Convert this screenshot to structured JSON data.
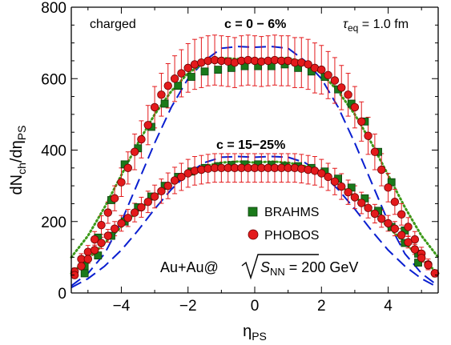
{
  "chart_data": {
    "type": "scatter",
    "xlabel": "η",
    "xlabel_sub": "PS",
    "ylabel": "dN",
    "ylabel_sub1": "ch",
    "ylabel_mid": "/dη",
    "ylabel_sub2": "PS",
    "xlim": [
      -5.5,
      5.5
    ],
    "ylim": [
      0,
      800
    ],
    "xticks": [
      -4,
      -2,
      0,
      2,
      4
    ],
    "xtick_labels": [
      "−4",
      "−2",
      "0",
      "2",
      "4"
    ],
    "yticks": [
      0,
      200,
      400,
      600,
      800
    ],
    "ytick_labels": [
      "0",
      "200",
      "400",
      "600",
      "800"
    ],
    "annotations": {
      "species": "charged",
      "central_label": "c = 0 − 6%",
      "peripheral_label": "c = 15−25%",
      "tau_symbol": "τ",
      "tau_sub": "eq",
      "tau_value": " = 1.0 fm",
      "system_prefix": "Au+Au@",
      "system_sym": "S",
      "system_sub": "NN",
      "system_value": " = 200 GeV"
    },
    "legend": {
      "position": "center-right",
      "entries": [
        "BRAHMS",
        "PHOBOS"
      ]
    },
    "colors": {
      "brahms": "#1a7a1a",
      "phobos": "#e31a1c",
      "phobos_err": "#e31a1c",
      "dashed": "#0a1fd0",
      "dotted": "#3d9a1a"
    },
    "series": [
      {
        "name": "BRAHMS",
        "group": "c = 0 − 6%",
        "x": [
          -5.1,
          -4.7,
          -4.3,
          -3.9,
          -3.5,
          -3.1,
          -2.7,
          -2.3,
          -1.9,
          -1.5,
          -1.1,
          -0.7,
          -0.3,
          0.1,
          0.5,
          0.9,
          1.3,
          1.7,
          2.1,
          2.5,
          2.9,
          3.3,
          3.7,
          4.1,
          4.5,
          4.9
        ],
        "y": [
          75,
          155,
          260,
          360,
          405,
          465,
          530,
          580,
          605,
          620,
          625,
          630,
          635,
          635,
          635,
          640,
          630,
          620,
          605,
          570,
          530,
          480,
          395,
          310,
          175,
          110
        ]
      },
      {
        "name": "PHOBOS",
        "group": "c = 0 − 6%",
        "x": [
          -5.4,
          -5.2,
          -5.0,
          -4.8,
          -4.6,
          -4.4,
          -4.2,
          -4.0,
          -3.8,
          -3.6,
          -3.4,
          -3.2,
          -3.0,
          -2.8,
          -2.6,
          -2.4,
          -2.2,
          -2.0,
          -1.8,
          -1.6,
          -1.4,
          -1.2,
          -1.0,
          -0.8,
          -0.6,
          -0.4,
          -0.2,
          0.0,
          0.2,
          0.4,
          0.6,
          0.8,
          1.0,
          1.2,
          1.4,
          1.6,
          1.8,
          2.0,
          2.2,
          2.4,
          2.6,
          2.8,
          3.0,
          3.2,
          3.4,
          3.6,
          3.8,
          4.0,
          4.2,
          4.4,
          4.6,
          4.8,
          5.0,
          5.2,
          5.4
        ],
        "y": [
          60,
          95,
          115,
          150,
          190,
          225,
          265,
          310,
          350,
          395,
          430,
          470,
          520,
          555,
          580,
          600,
          615,
          630,
          640,
          645,
          650,
          652,
          650,
          648,
          645,
          650,
          652,
          650,
          648,
          650,
          652,
          650,
          650,
          645,
          645,
          640,
          630,
          625,
          610,
          595,
          575,
          555,
          520,
          480,
          440,
          395,
          345,
          295,
          255,
          220,
          185,
          150,
          110,
          80,
          55
        ],
        "err": [
          10,
          15,
          18,
          22,
          26,
          30,
          35,
          40,
          45,
          50,
          52,
          55,
          58,
          60,
          62,
          64,
          66,
          68,
          70,
          70,
          70,
          70,
          70,
          70,
          70,
          70,
          70,
          70,
          70,
          70,
          70,
          70,
          70,
          70,
          70,
          70,
          70,
          68,
          66,
          64,
          62,
          60,
          58,
          55,
          52,
          50,
          45,
          40,
          35,
          30,
          26,
          22,
          18,
          15,
          10
        ]
      },
      {
        "name": "BRAHMS",
        "group": "c = 15−25%",
        "x": [
          -5.1,
          -4.7,
          -4.3,
          -3.9,
          -3.5,
          -3.1,
          -2.7,
          -2.3,
          -1.9,
          -1.5,
          -1.1,
          -0.7,
          -0.3,
          0.1,
          0.5,
          0.9,
          1.3,
          1.7,
          2.1,
          2.5,
          2.9,
          3.3,
          3.7,
          4.1,
          4.5,
          4.9
        ],
        "y": [
          55,
          105,
          160,
          200,
          240,
          270,
          300,
          325,
          340,
          350,
          355,
          358,
          360,
          360,
          358,
          355,
          355,
          350,
          340,
          320,
          295,
          265,
          230,
          185,
          140,
          85
        ]
      },
      {
        "name": "PHOBOS",
        "group": "c = 15−25%",
        "x": [
          -5.4,
          -5.2,
          -5.0,
          -4.8,
          -4.6,
          -4.4,
          -4.2,
          -4.0,
          -3.8,
          -3.6,
          -3.4,
          -3.2,
          -3.0,
          -2.8,
          -2.6,
          -2.4,
          -2.2,
          -2.0,
          -1.8,
          -1.6,
          -1.4,
          -1.2,
          -1.0,
          -0.8,
          -0.6,
          -0.4,
          -0.2,
          0.0,
          0.2,
          0.4,
          0.6,
          0.8,
          1.0,
          1.2,
          1.4,
          1.6,
          1.8,
          2.0,
          2.2,
          2.4,
          2.6,
          2.8,
          3.0,
          3.2,
          3.4,
          3.6,
          3.8,
          4.0,
          4.2,
          4.4,
          4.6,
          4.8,
          5.0,
          5.2,
          5.4
        ],
        "y": [
          50,
          75,
          95,
          120,
          140,
          160,
          180,
          195,
          210,
          225,
          240,
          255,
          270,
          285,
          300,
          315,
          325,
          335,
          342,
          345,
          348,
          350,
          350,
          350,
          350,
          350,
          350,
          350,
          350,
          350,
          350,
          350,
          350,
          350,
          348,
          345,
          342,
          335,
          325,
          312,
          298,
          282,
          268,
          252,
          238,
          222,
          208,
          195,
          180,
          162,
          142,
          122,
          98,
          78,
          55
        ],
        "err": [
          8,
          10,
          12,
          14,
          16,
          18,
          20,
          22,
          24,
          26,
          28,
          30,
          32,
          34,
          36,
          37,
          38,
          39,
          40,
          40,
          40,
          40,
          40,
          40,
          40,
          40,
          40,
          40,
          40,
          40,
          40,
          40,
          40,
          40,
          40,
          40,
          40,
          39,
          38,
          37,
          36,
          34,
          32,
          30,
          28,
          26,
          24,
          22,
          20,
          18,
          16,
          14,
          12,
          10,
          8
        ]
      },
      {
        "style": "dashed",
        "group": "c = 0 − 6%",
        "x": [
          -5.5,
          -5.0,
          -4.5,
          -4.0,
          -3.5,
          -3.0,
          -2.5,
          -2.0,
          -1.5,
          -1.0,
          -0.5,
          0.0,
          0.5,
          1.0,
          1.5,
          2.0,
          2.5,
          3.0,
          3.5,
          4.0,
          4.5,
          5.0,
          5.5
        ],
        "y": [
          20,
          55,
          110,
          200,
          310,
          420,
          520,
          600,
          650,
          685,
          690,
          688,
          690,
          685,
          650,
          600,
          520,
          420,
          310,
          200,
          110,
          55,
          20
        ]
      },
      {
        "style": "dotted",
        "group": "c = 0 − 6%",
        "x": [
          -5.5,
          -5.0,
          -4.5,
          -4.0,
          -3.5,
          -3.0,
          -2.5,
          -2.0,
          -1.5,
          -1.0,
          -0.5,
          0.0,
          0.5,
          1.0,
          1.5,
          2.0,
          2.5,
          3.0,
          3.5,
          4.0,
          4.5,
          5.0,
          5.5
        ],
        "y": [
          100,
          160,
          240,
          330,
          420,
          500,
          565,
          615,
          645,
          658,
          655,
          652,
          655,
          658,
          645,
          615,
          565,
          500,
          420,
          330,
          240,
          160,
          100
        ]
      },
      {
        "style": "dashed",
        "group": "c = 15−25%",
        "x": [
          -5.5,
          -5.0,
          -4.5,
          -4.0,
          -3.5,
          -3.0,
          -2.5,
          -2.0,
          -1.5,
          -1.0,
          -0.5,
          0.0,
          0.5,
          1.0,
          1.5,
          2.0,
          2.5,
          3.0,
          3.5,
          4.0,
          4.5,
          5.0,
          5.5
        ],
        "y": [
          15,
          40,
          75,
          120,
          175,
          235,
          290,
          335,
          365,
          380,
          382,
          380,
          382,
          380,
          365,
          335,
          290,
          235,
          175,
          120,
          75,
          40,
          15
        ]
      },
      {
        "style": "dotted",
        "group": "c = 15−25%",
        "x": [
          -5.5,
          -5.0,
          -4.5,
          -4.0,
          -3.5,
          -3.0,
          -2.5,
          -2.0,
          -1.5,
          -1.0,
          -0.5,
          0.0,
          0.5,
          1.0,
          1.5,
          2.0,
          2.5,
          3.0,
          3.5,
          4.0,
          4.5,
          5.0,
          5.5
        ],
        "y": [
          55,
          95,
          140,
          185,
          230,
          270,
          305,
          335,
          355,
          365,
          368,
          365,
          368,
          365,
          355,
          335,
          305,
          270,
          230,
          185,
          140,
          95,
          55
        ]
      }
    ]
  }
}
